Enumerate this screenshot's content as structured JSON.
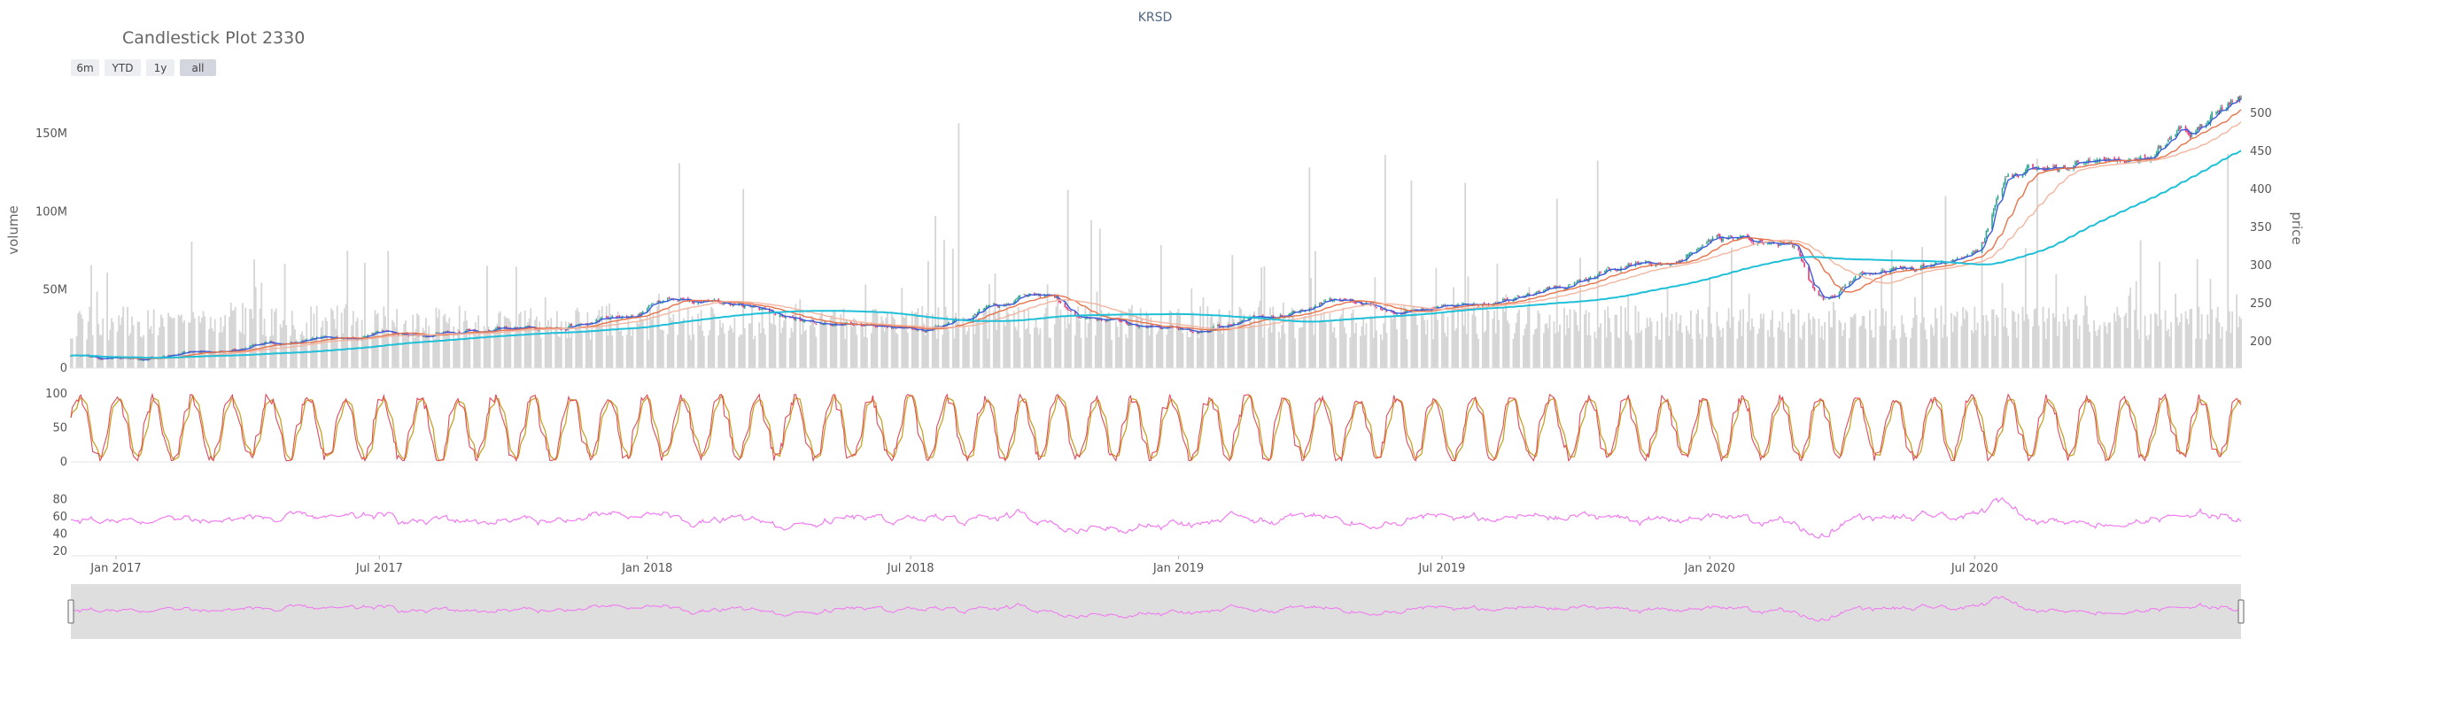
{
  "title": "Candlestick Plot 2330",
  "logo_text": "KRSD",
  "range_buttons": [
    {
      "label": "6m",
      "active": false
    },
    {
      "label": "YTD",
      "active": false
    },
    {
      "label": "1y",
      "active": false
    },
    {
      "label": "all",
      "active": true
    }
  ],
  "colors": {
    "volume": "#d6d6d6",
    "candle_up": "#2ca58d",
    "candle_down": "#e0407a",
    "ma_short": "#3b5bdb",
    "ma_mid": "#e8734a",
    "ma_long": "#f2b5a0",
    "ma_longest": "#1fbfd8",
    "stoch_k": "#e04a5a",
    "stoch_d": "#c9a227",
    "rsi": "#f07cf0",
    "rangeslider_bg": "#dedede",
    "text": "#555555"
  },
  "chart_data": [
    {
      "type": "candlestick",
      "panel": "main",
      "title": "Candlestick Plot 2330",
      "ylabel_left": "volume",
      "ylabel_right": "price",
      "x_range": [
        "2016-12-01",
        "2020-12-31"
      ],
      "price_ylim": [
        165,
        535
      ],
      "price_ticks": [
        200,
        250,
        300,
        350,
        400,
        450,
        500
      ],
      "volume_ylim": [
        0,
        180000000
      ],
      "volume_ticks": [
        0,
        50000000,
        100000000,
        150000000
      ],
      "volume_tick_labels": [
        "0",
        "50M",
        "100M",
        "150M"
      ],
      "x_ticks": [
        "2017-01-01",
        "2017-07-01",
        "2018-01-01",
        "2018-07-01",
        "2019-01-01",
        "2019-07-01",
        "2020-01-01",
        "2020-07-01"
      ],
      "x_tick_labels": [
        "Jan 2017",
        "Jul 2017",
        "Jan 2018",
        "Jul 2018",
        "Jan 2019",
        "Jul 2019",
        "Jan 2020",
        "Jul 2020"
      ],
      "price_anchors": [
        [
          "2016-12-01",
          182
        ],
        [
          "2017-01-15",
          180
        ],
        [
          "2017-03-01",
          188
        ],
        [
          "2017-05-01",
          200
        ],
        [
          "2017-07-01",
          210
        ],
        [
          "2017-09-01",
          215
        ],
        [
          "2017-11-01",
          222
        ],
        [
          "2017-12-15",
          232
        ],
        [
          "2018-01-20",
          255
        ],
        [
          "2018-03-01",
          248
        ],
        [
          "2018-04-20",
          228
        ],
        [
          "2018-06-01",
          222
        ],
        [
          "2018-07-15",
          218
        ],
        [
          "2018-09-01",
          248
        ],
        [
          "2018-10-01",
          262
        ],
        [
          "2018-10-30",
          232
        ],
        [
          "2018-12-15",
          220
        ],
        [
          "2019-01-20",
          216
        ],
        [
          "2019-03-01",
          235
        ],
        [
          "2019-05-01",
          252
        ],
        [
          "2019-06-01",
          238
        ],
        [
          "2019-07-15",
          245
        ],
        [
          "2019-09-15",
          270
        ],
        [
          "2019-11-15",
          300
        ],
        [
          "2020-01-15",
          335
        ],
        [
          "2020-02-25",
          325
        ],
        [
          "2020-03-19",
          255
        ],
        [
          "2020-04-15",
          285
        ],
        [
          "2020-05-20",
          298
        ],
        [
          "2020-06-30",
          310
        ],
        [
          "2020-07-25",
          420
        ],
        [
          "2020-08-15",
          425
        ],
        [
          "2020-09-20",
          440
        ],
        [
          "2020-10-20",
          438
        ],
        [
          "2020-11-20",
          470
        ],
        [
          "2020-12-31",
          520
        ]
      ],
      "moving_averages": [
        {
          "key": "ma_short",
          "window": 5
        },
        {
          "key": "ma_mid",
          "window": 20
        },
        {
          "key": "ma_long",
          "window": 40
        },
        {
          "key": "ma_longest",
          "window": 120
        }
      ]
    },
    {
      "type": "line",
      "panel": "stochastic",
      "ylim": [
        0,
        100
      ],
      "y_ticks": [
        0,
        50,
        100
      ]
    },
    {
      "type": "line",
      "panel": "rsi",
      "ylim": [
        15,
        92
      ],
      "y_ticks": [
        20,
        40,
        60,
        80
      ]
    }
  ]
}
